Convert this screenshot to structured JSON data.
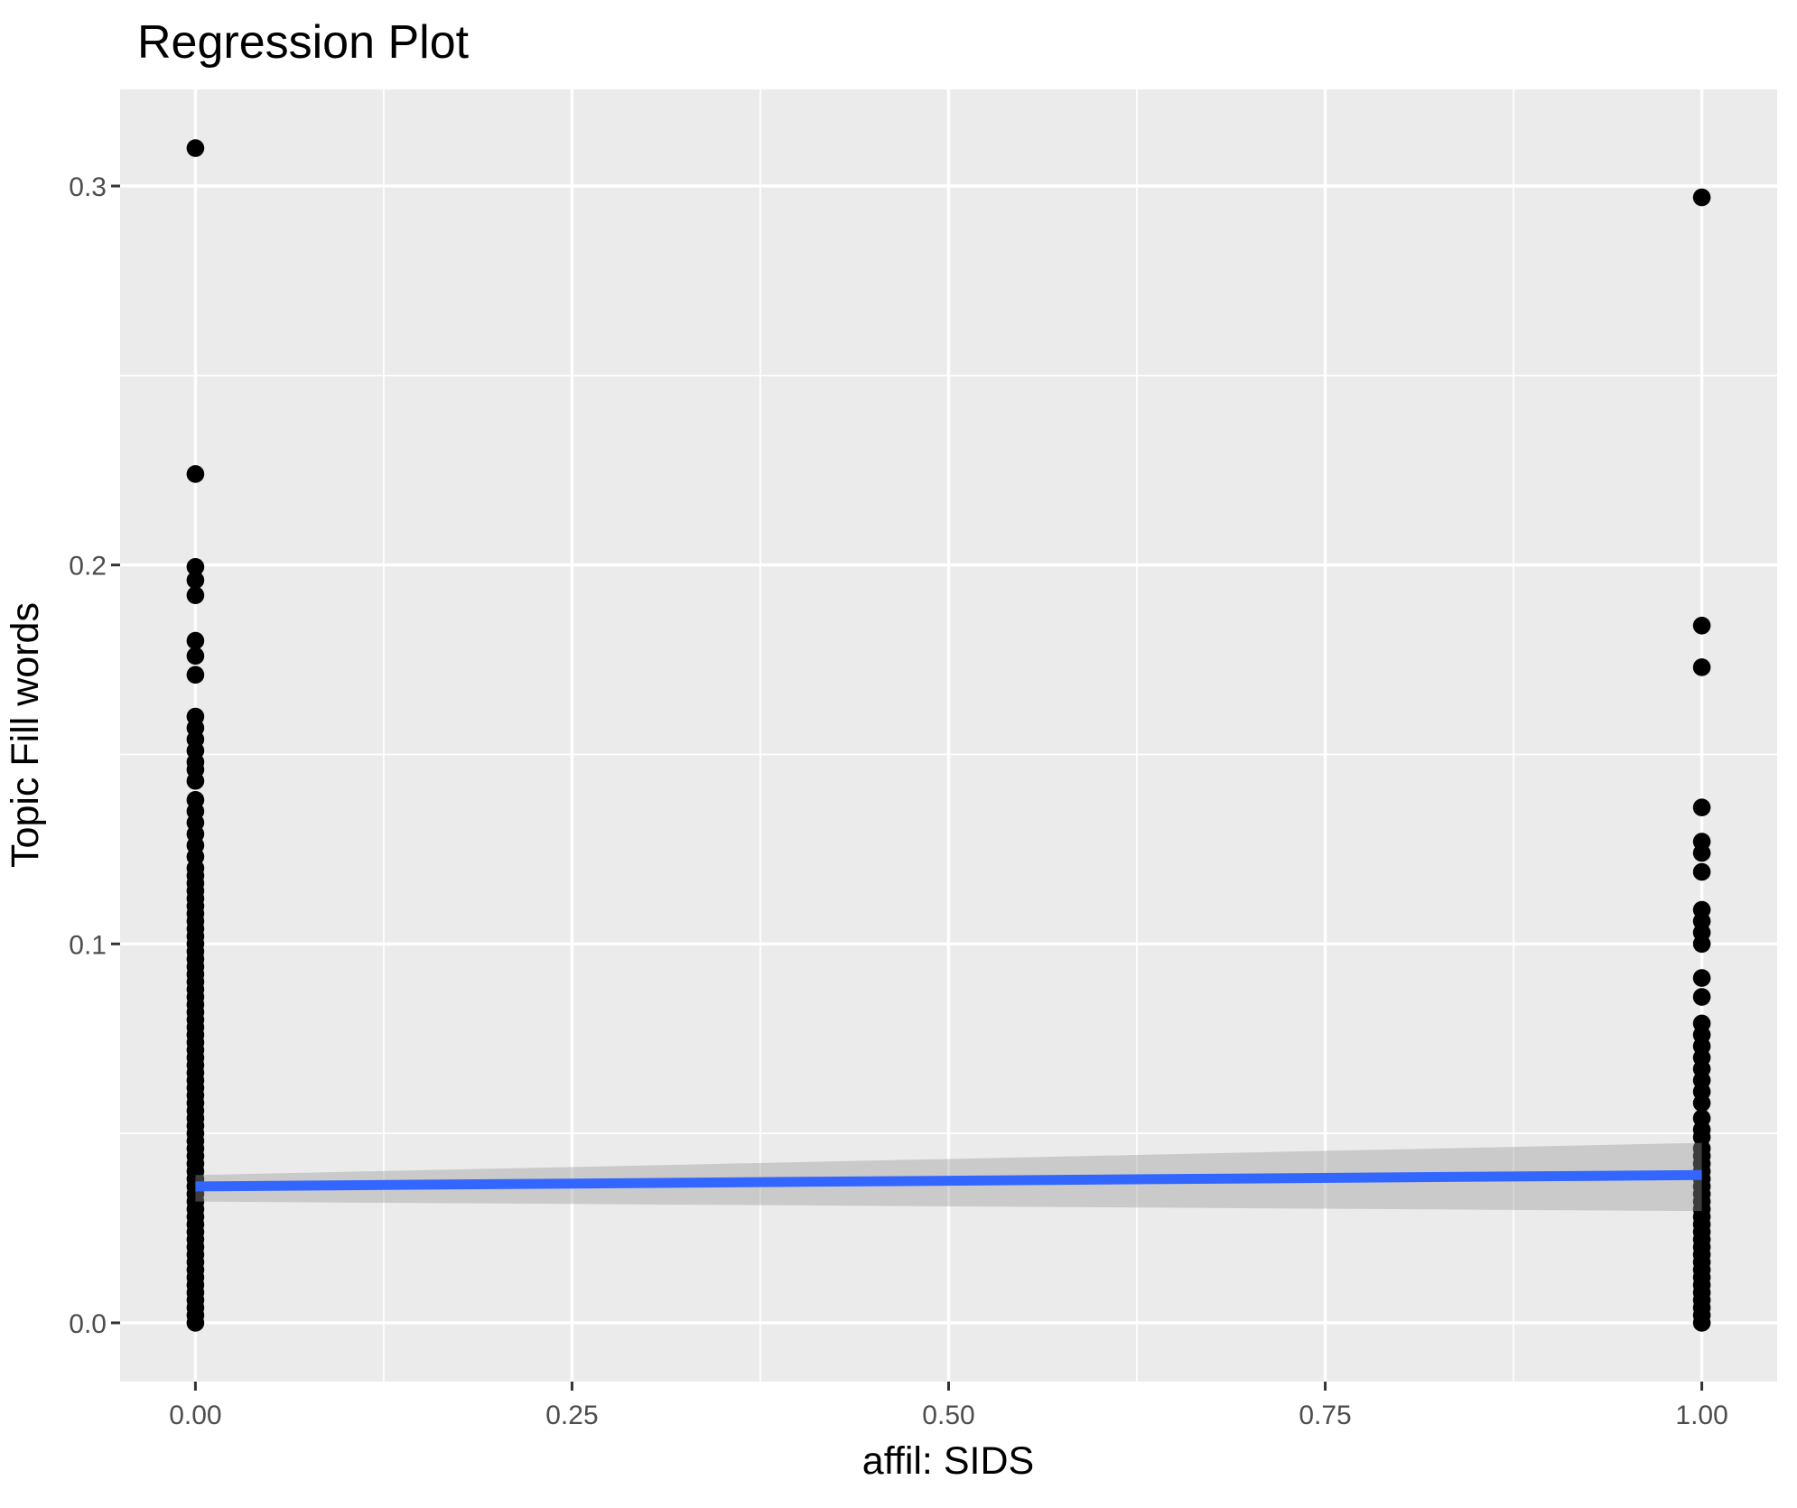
{
  "page": {
    "background": "#FFFFFF"
  },
  "chart_data": {
    "type": "scatter",
    "title": "Regression Plot",
    "xlabel": "affil: SIDS",
    "ylabel": "Topic Fill words",
    "xlim": [
      -0.05,
      1.05
    ],
    "ylim": [
      -0.0155,
      0.3255
    ],
    "x_ticks": {
      "values": [
        0,
        0.25,
        0.5,
        0.75,
        1.0
      ],
      "labels": [
        "0.00",
        "0.25",
        "0.50",
        "0.75",
        "1.00"
      ]
    },
    "y_ticks": {
      "values": [
        0,
        0.1,
        0.2,
        0.3
      ],
      "labels": [
        "0.0",
        "0.1",
        "0.2",
        "0.3"
      ]
    },
    "x_minor": [
      0.125,
      0.375,
      0.625,
      0.875
    ],
    "y_minor": [
      0.05,
      0.15,
      0.25
    ],
    "grid": "major-and-minor white gridlines on gray panel",
    "legend_position": "none",
    "series": [
      {
        "name": "affil: SIDS = 0",
        "x": 0,
        "y": [
          0.31,
          0.224,
          0.1995,
          0.196,
          0.192,
          0.18,
          0.176,
          0.171,
          0.16,
          0.157,
          0.154,
          0.151,
          0.148,
          0.146,
          0.143,
          0.138,
          0.135,
          0.132,
          0.129,
          0.126,
          0.123,
          0.12,
          0.118,
          0.116,
          0.114,
          0.112,
          0.11,
          0.108,
          0.106,
          0.104,
          0.102,
          0.1,
          0.098,
          0.096,
          0.094,
          0.092,
          0.09,
          0.088,
          0.086,
          0.084,
          0.082,
          0.08,
          0.078,
          0.076,
          0.074,
          0.072,
          0.07,
          0.068,
          0.066,
          0.064,
          0.062,
          0.06,
          0.058,
          0.056,
          0.054,
          0.052,
          0.05,
          0.048,
          0.046,
          0.044,
          0.042,
          0.04,
          0.038,
          0.036,
          0.034,
          0.032,
          0.03,
          0.028,
          0.026,
          0.024,
          0.022,
          0.02,
          0.018,
          0.016,
          0.014,
          0.012,
          0.01,
          0.008,
          0.006,
          0.004,
          0.002,
          0.0
        ]
      },
      {
        "name": "affil: SIDS = 1",
        "x": 1,
        "y": [
          0.297,
          0.184,
          0.173,
          0.136,
          0.127,
          0.124,
          0.119,
          0.109,
          0.106,
          0.103,
          0.1,
          0.091,
          0.086,
          0.079,
          0.076,
          0.073,
          0.07,
          0.067,
          0.064,
          0.061,
          0.058,
          0.054,
          0.051,
          0.049,
          0.046,
          0.044,
          0.042,
          0.04,
          0.038,
          0.036,
          0.034,
          0.032,
          0.03,
          0.028,
          0.026,
          0.024,
          0.022,
          0.02,
          0.018,
          0.016,
          0.014,
          0.012,
          0.01,
          0.008,
          0.006,
          0.004,
          0.002,
          0.0
        ]
      }
    ],
    "regression_line": {
      "x": [
        0,
        1
      ],
      "y": [
        0.036,
        0.039
      ],
      "color": "#3366FF",
      "width": 11
    },
    "confidence_band": {
      "x": [
        0,
        1
      ],
      "upper": [
        0.039,
        0.0475
      ],
      "lower": [
        0.032,
        0.0295
      ],
      "fill": "#999999",
      "opacity": 0.4
    },
    "style": {
      "panel_bg": "#EBEBEB",
      "grid_color": "#FFFFFF",
      "grid_major_width": 3.4,
      "grid_minor_width": 1.7,
      "point_color": "#000000",
      "point_radius": 9.8,
      "tick_label_color": "#4D4D4D",
      "tick_mark_color": "#333333",
      "tick_length": 10
    }
  }
}
